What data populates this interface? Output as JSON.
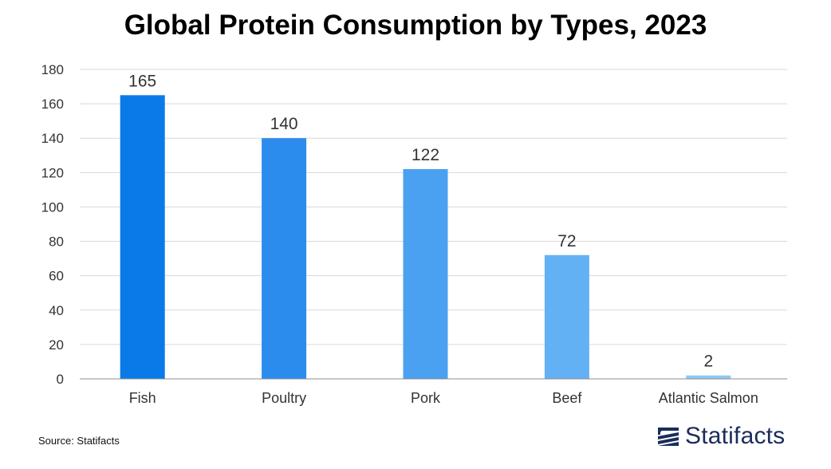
{
  "chart_data": {
    "type": "bar",
    "title": "Global Protein Consumption by Types, 2023",
    "categories": [
      "Fish",
      "Poultry",
      "Pork",
      "Beef",
      "Atlantic Salmon"
    ],
    "values": [
      165,
      140,
      122,
      72,
      2
    ],
    "data_labels": [
      "165",
      "140",
      "122",
      "72",
      "2"
    ],
    "ylim": [
      0,
      180
    ],
    "yticks": [
      0,
      20,
      40,
      60,
      80,
      100,
      120,
      140,
      160,
      180
    ],
    "xlabel": "",
    "ylabel": "",
    "grid": true,
    "legend": "none",
    "bar_colors": [
      "#0a7ae8",
      "#2b8cee",
      "#4aa1f2",
      "#63b1f5",
      "#8cc7f7"
    ]
  },
  "source_text": "Source: Statifacts",
  "brand": {
    "name": "Statifacts",
    "color": "#1a2c5b"
  },
  "colors": {
    "grid": "#d9d9d9",
    "axis": "#8c8c8c"
  }
}
